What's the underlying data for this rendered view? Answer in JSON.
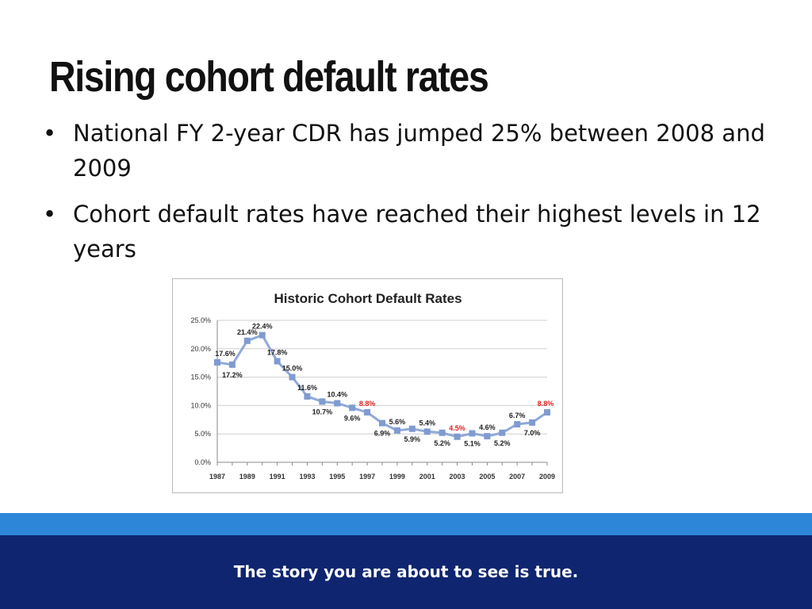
{
  "slide": {
    "title": "Rising cohort default rates",
    "bullets": [
      "National FY 2-year CDR has jumped 25% between 2008 and 2009",
      "Cohort default rates have reached their highest levels in 12 years"
    ],
    "footer": "The story you are about to see is true."
  },
  "colors": {
    "line": "#8fa9d8",
    "marker": "#7f9bd0",
    "highlight_label": "#e02020",
    "footer_band": "#0f2570",
    "footer_stripe": "#2e86d8"
  },
  "chart_data": {
    "type": "line",
    "title": "Historic Cohort Default Rates",
    "xlabel": "",
    "ylabel": "",
    "x": [
      1987,
      1988,
      1989,
      1990,
      1991,
      1992,
      1993,
      1994,
      1995,
      1996,
      1997,
      1998,
      1999,
      2000,
      2001,
      2002,
      2003,
      2004,
      2005,
      2006,
      2007,
      2008,
      2009
    ],
    "y": [
      17.6,
      17.2,
      21.4,
      22.4,
      17.8,
      15.0,
      11.6,
      10.7,
      10.4,
      9.6,
      8.8,
      6.9,
      5.6,
      5.9,
      5.4,
      5.2,
      4.5,
      5.1,
      4.6,
      5.2,
      6.7,
      7.0,
      8.8
    ],
    "data_labels": [
      "17.6%",
      "17.2%",
      "21.4%",
      "22.4%",
      "17.8%",
      "15.0%",
      "11.6%",
      "10.7%",
      "10.4%",
      "9.6%",
      "8.8%",
      "6.9%",
      "5.6%",
      "5.9%",
      "5.4%",
      "5.2%",
      "4.5%",
      "5.1%",
      "4.6%",
      "5.2%",
      "6.7%",
      "7.0%",
      "8.8%"
    ],
    "highlighted_labels": [
      "8.8%",
      "4.5%",
      "8.8%"
    ],
    "highlighted_years": [
      1997,
      2003,
      2009
    ],
    "x_tick_labels": [
      "1987",
      "1989",
      "1991",
      "1993",
      "1995",
      "1997",
      "1999",
      "2001",
      "2003",
      "2005",
      "2007",
      "2009"
    ],
    "y_tick_labels": [
      "0.0%",
      "5.0%",
      "10.0%",
      "15.0%",
      "20.0%",
      "25.0%"
    ],
    "ylim": [
      0,
      25
    ],
    "grid": true,
    "legend": "none"
  }
}
